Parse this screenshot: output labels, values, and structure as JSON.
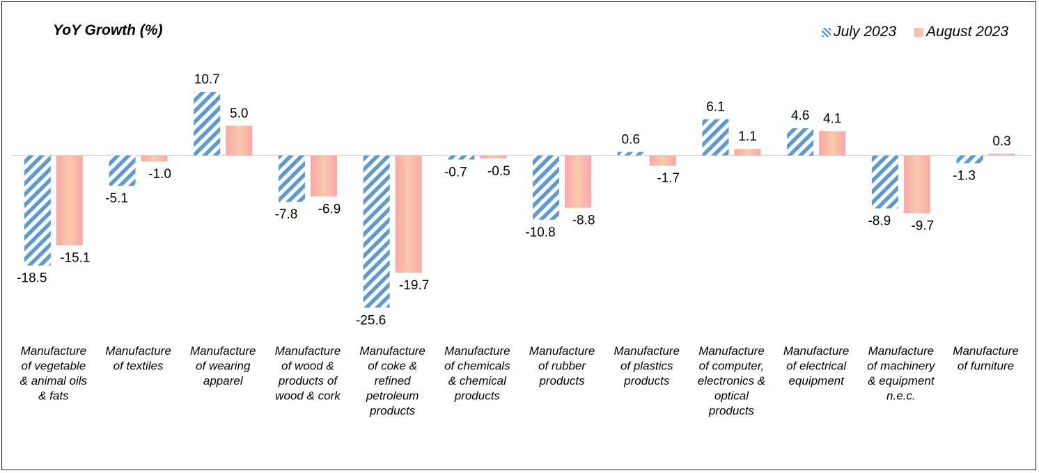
{
  "chart_data": {
    "type": "bar",
    "ylabel": "YoY Growth (%)",
    "legend_position": "top-right",
    "grid": false,
    "categories": [
      [
        "Manufacture",
        "of vegetable",
        "& animal oils",
        "& fats"
      ],
      [
        "Manufacture",
        "of textiles"
      ],
      [
        "Manufacture",
        "of wearing",
        "apparel"
      ],
      [
        "Manufacture",
        "of wood &",
        "products of",
        "wood & cork"
      ],
      [
        "Manufacture",
        "of coke &",
        "refined",
        "petroleum",
        "products"
      ],
      [
        "Manufacture",
        "of chemicals",
        "& chemical",
        "products"
      ],
      [
        "Manufacture",
        "of rubber",
        "products"
      ],
      [
        "Manufacture",
        "of plastics",
        "products"
      ],
      [
        "Manufacture",
        "of computer,",
        "electronics &",
        "optical",
        "products"
      ],
      [
        "Manufacture",
        "of electrical",
        "equipment"
      ],
      [
        "Manufacture",
        "of machinery",
        "& equipment",
        "n.e.c."
      ],
      [
        "Manufacture",
        "of furniture"
      ]
    ],
    "series": [
      {
        "name": "July 2023",
        "values": [
          -18.5,
          -5.1,
          10.7,
          -7.8,
          -25.6,
          -0.7,
          -10.8,
          0.6,
          6.1,
          4.6,
          -8.9,
          -1.3
        ],
        "labels": [
          "-18.5",
          "-5.1",
          "10.7",
          "-7.8",
          "-25.6",
          "-0.7",
          "-10.8",
          "0.6",
          "6.1",
          "4.6",
          "-8.9",
          "-1.3"
        ],
        "color": "#5b9bd5",
        "pattern": "diagonal-hatch"
      },
      {
        "name": "August 2023",
        "values": [
          -15.1,
          -1.0,
          5.0,
          -6.9,
          -19.7,
          -0.5,
          -8.8,
          -1.7,
          1.1,
          4.1,
          -9.7,
          0.3
        ],
        "labels": [
          "-15.1",
          "-1.0",
          "5.0",
          "-6.9",
          "-19.7",
          "-0.5",
          "-8.8",
          "-1.7",
          "1.1",
          "4.1",
          "-9.7",
          "0.3"
        ],
        "color": "#fbb5ae",
        "pattern": "gradient"
      }
    ]
  }
}
